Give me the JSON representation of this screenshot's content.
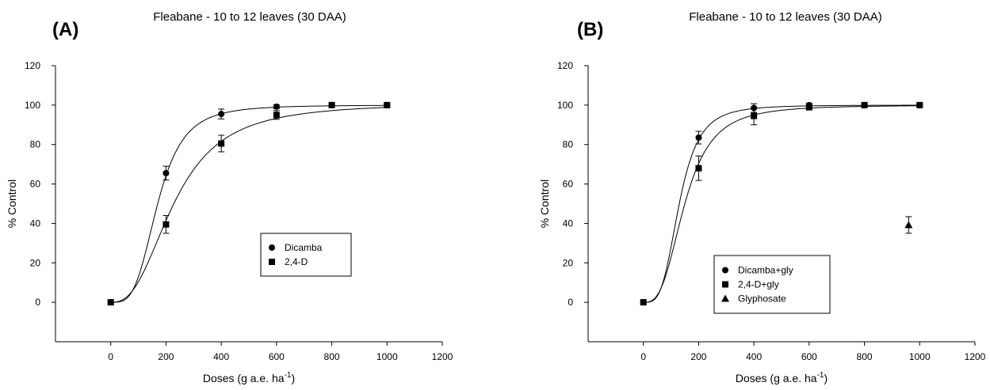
{
  "chart_data": [
    {
      "type": "scatter",
      "panel_label": "(A)",
      "title": "Fleabane - 10 to 12 leaves (30 DAA)",
      "xlabel": "Doses (g a.e. ha",
      "xlabel_sup": "-1",
      "xlabel_end": ")",
      "ylabel": "% Control",
      "xlim": [
        -200,
        1200
      ],
      "ylim": [
        -20,
        120
      ],
      "xticks": [
        0,
        200,
        400,
        600,
        800,
        1000,
        1200
      ],
      "yticks": [
        0,
        20,
        40,
        60,
        80,
        100,
        120
      ],
      "grid": false,
      "legend_position": "center-right",
      "series": [
        {
          "name": "Dicamba",
          "marker": "circle",
          "x": [
            0,
            200,
            400,
            600,
            800,
            1000
          ],
          "y": [
            0,
            65.5,
            95.5,
            99.2,
            100,
            100
          ],
          "err": [
            0,
            3.5,
            2.5,
            1.0,
            0.5,
            0.5
          ],
          "fit": {
            "form": "log-logistic",
            "top": 100,
            "ed50": 170,
            "slope": 3.6
          }
        },
        {
          "name": "2,4-D",
          "marker": "square",
          "x": [
            0,
            200,
            400,
            600,
            800,
            1000
          ],
          "y": [
            0,
            39.5,
            80.5,
            95.0,
            100,
            100
          ],
          "err": [
            0,
            4.5,
            4.2,
            2.2,
            0.5,
            0.5
          ],
          "fit": {
            "form": "log-logistic",
            "top": 101,
            "ed50": 230,
            "slope": 2.6
          }
        }
      ]
    },
    {
      "type": "scatter",
      "panel_label": "(B)",
      "title": "Fleabane - 10 to 12 leaves (30 DAA)",
      "xlabel": "Doses (g a.e. ha",
      "xlabel_sup": "-1",
      "xlabel_end": ")",
      "ylabel": "% Control",
      "xlim": [
        -200,
        1200
      ],
      "ylim": [
        -20,
        120
      ],
      "xticks": [
        0,
        200,
        400,
        600,
        800,
        1000,
        1200
      ],
      "yticks": [
        0,
        20,
        40,
        60,
        80,
        100,
        120
      ],
      "grid": false,
      "legend_position": "bottom-right",
      "series": [
        {
          "name": "Dicamba+gly",
          "marker": "circle",
          "x": [
            0,
            200,
            400,
            600,
            800,
            1000
          ],
          "y": [
            0,
            83.5,
            98.5,
            100,
            100,
            100
          ],
          "err": [
            0,
            3.2,
            2.2,
            1.0,
            0.5,
            0.5
          ],
          "fit": {
            "form": "log-logistic",
            "top": 100,
            "ed50": 130,
            "slope": 3.6
          }
        },
        {
          "name": "2,4-D+gly",
          "marker": "square",
          "x": [
            0,
            200,
            400,
            600,
            800,
            1000
          ],
          "y": [
            0,
            68.0,
            94.5,
            99.0,
            100,
            100
          ],
          "err": [
            0,
            6.2,
            4.5,
            1.5,
            0.5,
            0.5
          ],
          "fit": {
            "form": "log-logistic",
            "top": 100,
            "ed50": 150,
            "slope": 3.0
          }
        },
        {
          "name": "Glyphosate",
          "marker": "triangle",
          "x": [
            960
          ],
          "y": [
            39.2
          ],
          "err": [
            4.2
          ]
        }
      ]
    }
  ]
}
